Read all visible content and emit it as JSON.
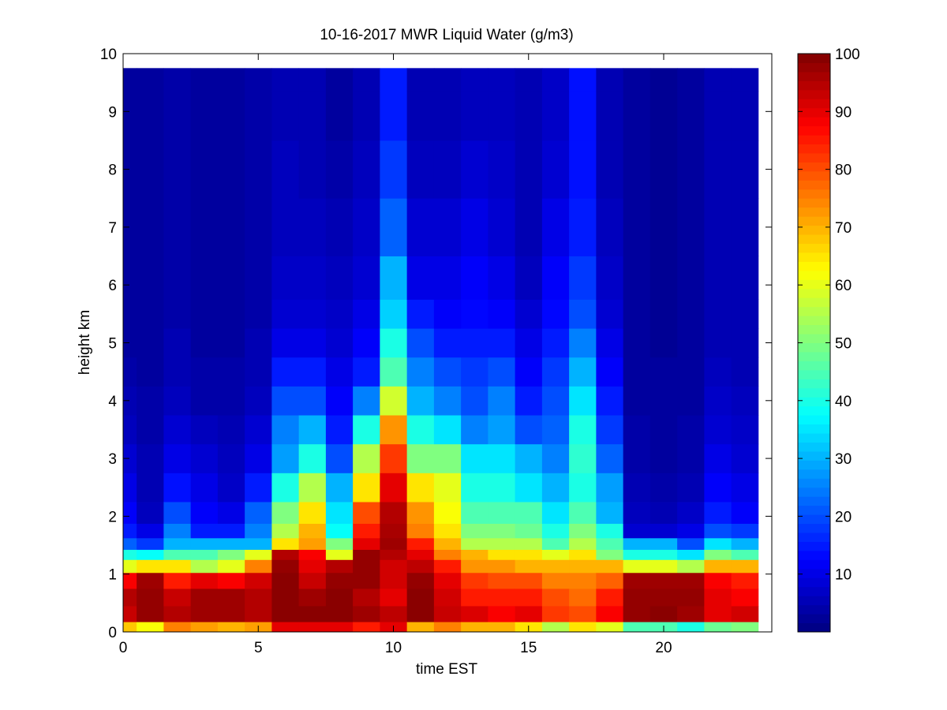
{
  "chart_data": {
    "type": "heatmap",
    "title": "10-16-2017 MWR Liquid Water (g/m3)",
    "xlabel": "time EST",
    "ylabel": "height km",
    "xlim": [
      0,
      24
    ],
    "ylim": [
      0,
      10
    ],
    "x_ticks": [
      "0",
      "5",
      "10",
      "15",
      "20"
    ],
    "y_ticks": [
      "0",
      "1",
      "2",
      "3",
      "4",
      "5",
      "6",
      "7",
      "8",
      "9",
      "10"
    ],
    "colorbar": {
      "colormap": "jet",
      "range": [
        0,
        100
      ],
      "ticks": [
        "10",
        "20",
        "30",
        "40",
        "50",
        "60",
        "70",
        "80",
        "90",
        "100"
      ]
    },
    "time_hours": [
      0,
      1,
      2,
      3,
      4,
      5,
      6,
      7,
      8,
      9,
      10,
      11,
      12,
      13,
      14,
      15,
      16,
      17,
      18,
      19,
      20,
      21,
      22,
      23
    ],
    "height_km": [
      0.05,
      0.3,
      0.6,
      0.9,
      1.15,
      1.35,
      1.5,
      1.75,
      2.0,
      2.5,
      3.0,
      3.5,
      4.0,
      4.5,
      5.0,
      5.5,
      6.0,
      7.0,
      8.0,
      9.0,
      9.7
    ],
    "values": [
      [
        68,
        93,
        95,
        88,
        60,
        40,
        22,
        15,
        12,
        10,
        8,
        6,
        5,
        4,
        3,
        3,
        3,
        3,
        3,
        3,
        3
      ],
      [
        62,
        98,
        98,
        97,
        65,
        38,
        18,
        10,
        6,
        5,
        5,
        4,
        4,
        3,
        3,
        3,
        3,
        3,
        3,
        3,
        3
      ],
      [
        75,
        95,
        93,
        85,
        65,
        45,
        30,
        25,
        20,
        14,
        10,
        8,
        6,
        5,
        5,
        4,
        4,
        4,
        4,
        4,
        4
      ],
      [
        72,
        97,
        97,
        90,
        55,
        45,
        30,
        15,
        12,
        10,
        8,
        6,
        4,
        4,
        3,
        3,
        3,
        3,
        3,
        3,
        3
      ],
      [
        70,
        97,
        97,
        88,
        60,
        50,
        30,
        15,
        10,
        7,
        6,
        5,
        4,
        4,
        3,
        3,
        3,
        3,
        3,
        3,
        3
      ],
      [
        72,
        95,
        95,
        92,
        75,
        60,
        30,
        25,
        22,
        15,
        10,
        8,
        6,
        5,
        5,
        4,
        4,
        4,
        4,
        4,
        4
      ],
      [
        90,
        99,
        99,
        99,
        98,
        95,
        65,
        55,
        50,
        40,
        28,
        25,
        20,
        15,
        10,
        8,
        7,
        6,
        6,
        5,
        5
      ],
      [
        90,
        99,
        97,
        93,
        90,
        88,
        72,
        70,
        65,
        55,
        40,
        30,
        20,
        15,
        10,
        8,
        7,
        6,
        5,
        5,
        5
      ],
      [
        90,
        99,
        99,
        98,
        95,
        60,
        50,
        38,
        35,
        30,
        20,
        15,
        12,
        10,
        8,
        7,
        6,
        5,
        4,
        3,
        3
      ],
      [
        85,
        97,
        95,
        98,
        98,
        98,
        90,
        85,
        80,
        65,
        55,
        40,
        25,
        15,
        12,
        10,
        8,
        7,
        6,
        5,
        5
      ],
      [
        90,
        94,
        90,
        92,
        92,
        95,
        97,
        96,
        95,
        90,
        82,
        73,
        58,
        45,
        40,
        33,
        30,
        22,
        18,
        15,
        15
      ],
      [
        70,
        99,
        99,
        98,
        94,
        90,
        85,
        75,
        73,
        65,
        50,
        40,
        30,
        25,
        20,
        15,
        10,
        8,
        6,
        5,
        5
      ],
      [
        75,
        93,
        92,
        90,
        85,
        75,
        70,
        65,
        62,
        60,
        50,
        35,
        25,
        20,
        15,
        12,
        10,
        8,
        6,
        5,
        5
      ],
      [
        70,
        91,
        85,
        82,
        73,
        70,
        55,
        50,
        45,
        40,
        35,
        25,
        20,
        18,
        15,
        13,
        12,
        10,
        8,
        6,
        6
      ],
      [
        70,
        88,
        85,
        80,
        73,
        65,
        55,
        50,
        45,
        40,
        35,
        28,
        25,
        20,
        15,
        12,
        10,
        8,
        7,
        6,
        6
      ],
      [
        65,
        90,
        85,
        80,
        70,
        65,
        55,
        48,
        45,
        35,
        30,
        20,
        15,
        12,
        10,
        8,
        6,
        5,
        5,
        5,
        5
      ],
      [
        55,
        82,
        80,
        75,
        70,
        60,
        45,
        40,
        35,
        30,
        25,
        22,
        20,
        18,
        15,
        13,
        12,
        10,
        8,
        7,
        7
      ],
      [
        65,
        80,
        77,
        75,
        70,
        65,
        55,
        50,
        45,
        40,
        42,
        40,
        35,
        30,
        25,
        20,
        18,
        15,
        14,
        14,
        14
      ],
      [
        60,
        88,
        85,
        78,
        70,
        50,
        45,
        40,
        30,
        28,
        22,
        18,
        15,
        12,
        10,
        8,
        7,
        6,
        5,
        5,
        5
      ],
      [
        45,
        98,
        98,
        97,
        60,
        40,
        30,
        8,
        6,
        5,
        4,
        4,
        3,
        3,
        3,
        3,
        3,
        3,
        3,
        3,
        3
      ],
      [
        45,
        99,
        98,
        97,
        60,
        40,
        30,
        8,
        5,
        4,
        3,
        3,
        3,
        3,
        2,
        2,
        2,
        2,
        2,
        2,
        2
      ],
      [
        40,
        97,
        98,
        97,
        55,
        35,
        20,
        10,
        7,
        5,
        4,
        4,
        3,
        3,
        3,
        3,
        3,
        3,
        3,
        3,
        3
      ],
      [
        48,
        90,
        90,
        88,
        70,
        50,
        35,
        20,
        15,
        12,
        10,
        8,
        7,
        6,
        5,
        5,
        5,
        5,
        5,
        5,
        5
      ],
      [
        50,
        92,
        88,
        85,
        70,
        45,
        30,
        18,
        12,
        10,
        8,
        7,
        6,
        5,
        5,
        5,
        5,
        5,
        5,
        5,
        5
      ]
    ]
  }
}
